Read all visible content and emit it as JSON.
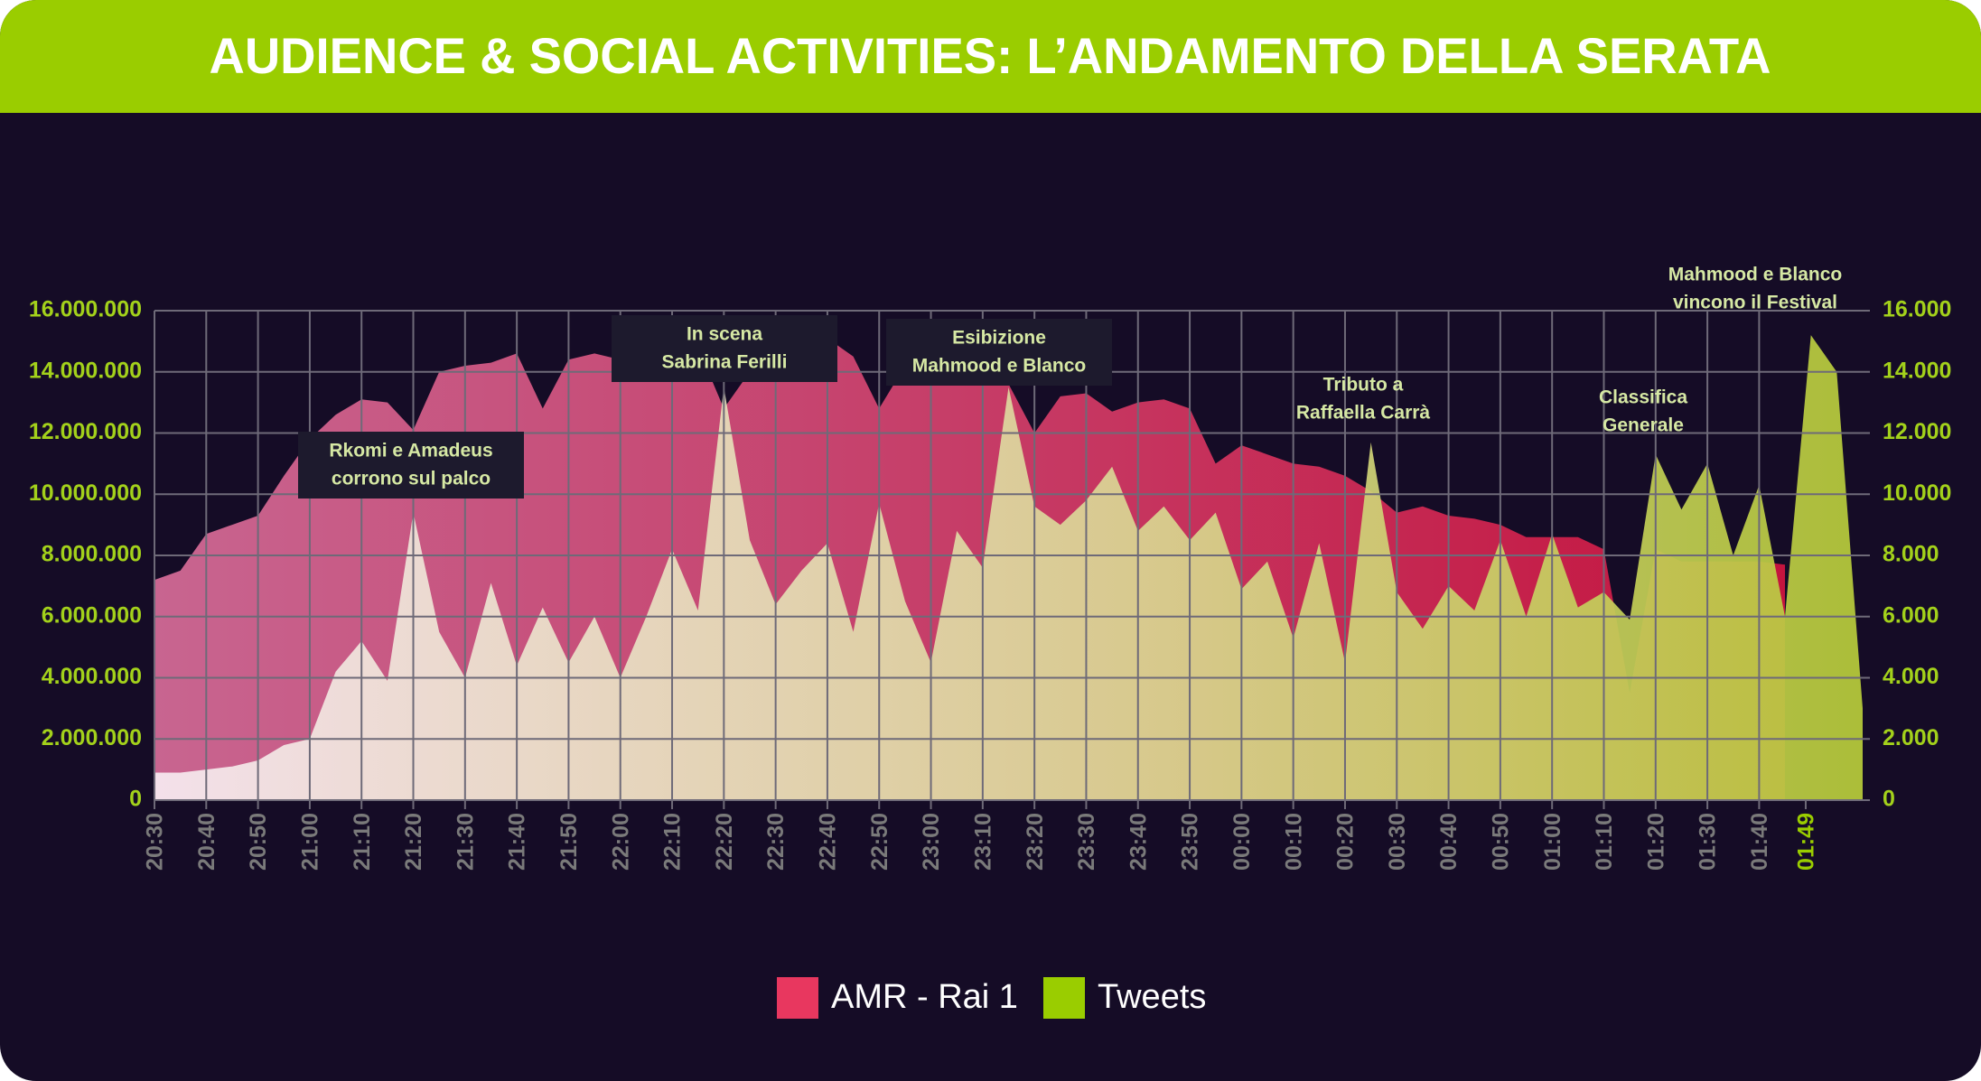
{
  "chart_data": {
    "type": "area",
    "title": "AUDIENCE & SOCIAL ACTIVITIES: L’ANDAMENTO DELLA SERATA",
    "x": [
      "20:30",
      "20:35",
      "20:40",
      "20:45",
      "20:50",
      "20:55",
      "21:00",
      "21:05",
      "21:10",
      "21:15",
      "21:20",
      "21:25",
      "21:30",
      "21:35",
      "21:40",
      "21:45",
      "21:50",
      "21:55",
      "22:00",
      "22:05",
      "22:10",
      "22:15",
      "22:20",
      "22:25",
      "22:30",
      "22:35",
      "22:40",
      "22:45",
      "22:50",
      "22:55",
      "23:00",
      "23:05",
      "23:10",
      "23:15",
      "23:20",
      "23:25",
      "23:30",
      "23:35",
      "23:40",
      "23:45",
      "23:50",
      "23:55",
      "00:00",
      "00:05",
      "00:10",
      "00:15",
      "00:20",
      "00:25",
      "00:30",
      "00:35",
      "00:40",
      "00:45",
      "00:50",
      "00:55",
      "01:00",
      "01:05",
      "01:10",
      "01:15",
      "01:20",
      "01:25",
      "01:30",
      "01:35",
      "01:40",
      "01:45",
      "01:50",
      "01:55",
      "02:00"
    ],
    "series": [
      {
        "name": "AMR - Rai 1",
        "color": "#e8375f",
        "axis": "y",
        "values": [
          7200000,
          7500000,
          8700000,
          9000000,
          9300000,
          10600000,
          11800000,
          12600000,
          13100000,
          13000000,
          12100000,
          14000000,
          14200000,
          14300000,
          14600000,
          12800000,
          14400000,
          14600000,
          14400000,
          14800000,
          15000000,
          14800000,
          12800000,
          14000000,
          14800000,
          15000000,
          15100000,
          14500000,
          12800000,
          14200000,
          14400000,
          14200000,
          14000000,
          13600000,
          12000000,
          13200000,
          13300000,
          12700000,
          13000000,
          13100000,
          12800000,
          11000000,
          11600000,
          11300000,
          11000000,
          10900000,
          10600000,
          10100000,
          9400000,
          9600000,
          9300000,
          9200000,
          9000000,
          8600000,
          8600000,
          8600000,
          8200000,
          3500000,
          8200000,
          7800000,
          7800000,
          7800000,
          7800000,
          7700000,
          null,
          null,
          null
        ]
      },
      {
        "name": "Tweets",
        "color": "#9acd00",
        "axis": "y2",
        "values": [
          900,
          900,
          1000,
          1100,
          1300,
          1800,
          2000,
          4200,
          5200,
          3900,
          9400,
          5500,
          4000,
          7100,
          4400,
          6300,
          4500,
          6000,
          4000,
          6000,
          8200,
          6200,
          13500,
          8500,
          6400,
          7500,
          8400,
          5500,
          9700,
          6500,
          4500,
          8800,
          7600,
          13500,
          9600,
          9000,
          9800,
          10900,
          8800,
          9600,
          8500,
          9400,
          6900,
          7800,
          5300,
          8400,
          4500,
          11700,
          6800,
          5600,
          7000,
          6200,
          8500,
          6000,
          8700,
          6300,
          6800,
          5900,
          11300,
          9500,
          11000,
          8000,
          10300,
          6000,
          15200,
          14000,
          3000
        ]
      }
    ],
    "xlim": [
      "20:30",
      "02:00"
    ],
    "xticks": [
      "20:30",
      "20:40",
      "20:50",
      "21:00",
      "21:10",
      "21:20",
      "21:30",
      "21:40",
      "21:50",
      "22:00",
      "22:10",
      "22:20",
      "22:30",
      "22:40",
      "22:50",
      "23:00",
      "23:10",
      "23:20",
      "23:30",
      "23:40",
      "23:50",
      "00:00",
      "00:10",
      "00:20",
      "00:30",
      "00:40",
      "00:50",
      "01:00",
      "01:10",
      "01:20",
      "01:30",
      "01:40",
      "01:49"
    ],
    "ylim": [
      0,
      16000000
    ],
    "yticks": [
      0,
      {
        "value": 2000000,
        "label": "2.000.000"
      },
      {
        "value": 4000000,
        "label": "4.000.000"
      },
      {
        "value": 6000000,
        "label": "6.000.000"
      },
      {
        "value": 8000000,
        "label": "8.000.000"
      },
      {
        "value": 10000000,
        "label": "10.000.000"
      },
      {
        "value": 12000000,
        "label": "12.000.000"
      },
      {
        "value": 14000000,
        "label": "14.000.000"
      },
      {
        "value": 16000000,
        "label": "16.000.000"
      }
    ],
    "y2lim": [
      0,
      16000
    ],
    "y2ticks": [
      0,
      {
        "value": 2000,
        "label": "2.000"
      },
      {
        "value": 4000,
        "label": "4.000"
      },
      {
        "value": 6000,
        "label": "6.000"
      },
      {
        "value": 8000,
        "label": "8.000"
      },
      {
        "value": 10000,
        "label": "10.000"
      },
      {
        "value": 12000,
        "label": "12.000"
      },
      {
        "value": 14000,
        "label": "14.000"
      },
      {
        "value": 16000,
        "label": "16.000"
      }
    ],
    "grid": true,
    "annotations": [
      [
        "Rkomi e Amadeus",
        "corrono sul palco"
      ],
      [
        "In scena",
        "Sabrina Ferilli"
      ],
      [
        "Esibizione",
        "Mahmood e Blanco"
      ],
      [
        "Tributo a",
        "Raffaella Carrà"
      ],
      [
        "Classifica",
        "Generale"
      ],
      [
        "Mahmood e Blanco",
        "vincono il Festival"
      ]
    ]
  }
}
